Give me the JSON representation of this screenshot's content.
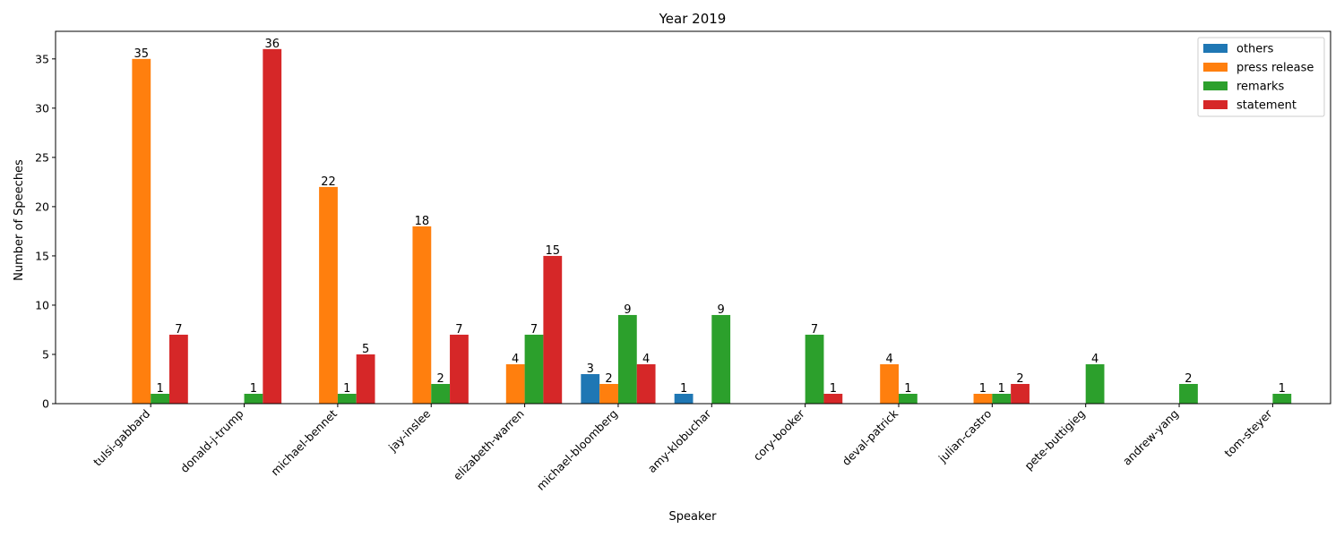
{
  "chart_data": {
    "type": "bar",
    "title": "Year 2019",
    "xlabel": "Speaker",
    "ylabel": "Number of Speeches",
    "ylim": [
      0,
      37.8
    ],
    "yticks": [
      0,
      5,
      10,
      15,
      20,
      25,
      30,
      35
    ],
    "grid": false,
    "legend_position": "top-right",
    "categories": [
      "tulsi-gabbard",
      "donald-j-trump",
      "michael-bennet",
      "jay-inslee",
      "elizabeth-warren",
      "michael-bloomberg",
      "amy-klobuchar",
      "cory-booker",
      "deval-patrick",
      "julian-castro",
      "pete-buttigieg",
      "andrew-yang",
      "tom-steyer"
    ],
    "series": [
      {
        "name": "others",
        "color": "#1f77b4",
        "values": [
          0,
          0,
          0,
          0,
          0,
          3,
          1,
          0,
          0,
          0,
          0,
          0,
          0
        ]
      },
      {
        "name": "press release",
        "color": "#ff7f0e",
        "values": [
          35,
          0,
          22,
          18,
          4,
          2,
          0,
          0,
          4,
          1,
          0,
          0,
          0
        ]
      },
      {
        "name": "remarks",
        "color": "#2ca02c",
        "values": [
          1,
          1,
          1,
          2,
          7,
          9,
          9,
          7,
          1,
          1,
          4,
          2,
          1
        ]
      },
      {
        "name": "statement",
        "color": "#d62728",
        "values": [
          7,
          36,
          5,
          7,
          15,
          4,
          0,
          1,
          0,
          2,
          0,
          0,
          0
        ]
      }
    ]
  }
}
